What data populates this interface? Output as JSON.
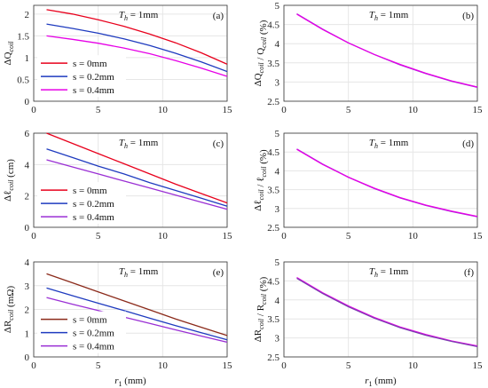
{
  "legend_labels": [
    "s = 0mm",
    "s = 0.2mm",
    "s = 0.4mm"
  ],
  "annotation": "T_h = 1mm",
  "xlabel": "r_1 (mm)",
  "chart_data": [
    {
      "id": "a",
      "type": "line",
      "panel_label": "(a)",
      "ylabel": "ΔQ_coil",
      "xlim": [
        0,
        15
      ],
      "ylim": [
        0,
        2.2
      ],
      "xticks": [
        0,
        5,
        10,
        15
      ],
      "yticks": [
        0,
        0.5,
        1,
        1.5,
        2
      ],
      "x": [
        1,
        3,
        5,
        7,
        9,
        11,
        13,
        15
      ],
      "series": [
        {
          "name": "s = 0mm",
          "color": "#e8001c",
          "values": [
            2.1,
            2.0,
            1.87,
            1.72,
            1.54,
            1.34,
            1.11,
            0.85
          ]
        },
        {
          "name": "s = 0.2mm",
          "color": "#1f3bbf",
          "values": [
            1.77,
            1.67,
            1.56,
            1.43,
            1.28,
            1.1,
            0.9,
            0.68
          ]
        },
        {
          "name": "s = 0.4mm",
          "color": "#e600e6",
          "values": [
            1.5,
            1.42,
            1.33,
            1.22,
            1.09,
            0.93,
            0.76,
            0.57
          ]
        }
      ],
      "legend": true,
      "annotation": true,
      "grid": true
    },
    {
      "id": "b",
      "type": "line",
      "panel_label": "(b)",
      "ylabel": "ΔQ_coil / Q_coil (%)",
      "xlim": [
        0,
        15
      ],
      "ylim": [
        2.5,
        5
      ],
      "xticks": [
        0,
        5,
        10,
        15
      ],
      "yticks": [
        2.5,
        3,
        3.5,
        4,
        4.5,
        5
      ],
      "x": [
        1,
        3,
        5,
        7,
        9,
        11,
        13,
        15
      ],
      "series": [
        {
          "name": "",
          "color": "#9a2fd4",
          "values": [
            4.78,
            4.38,
            4.02,
            3.72,
            3.45,
            3.22,
            3.02,
            2.86
          ]
        },
        {
          "name": "",
          "color": "#e600e6",
          "values": [
            4.77,
            4.37,
            4.02,
            3.72,
            3.46,
            3.23,
            3.03,
            2.87
          ]
        }
      ],
      "legend": false,
      "annotation": true,
      "grid": true
    },
    {
      "id": "c",
      "type": "line",
      "panel_label": "(c)",
      "ylabel": "Δℓ_coil (cm)",
      "xlim": [
        0,
        15
      ],
      "ylim": [
        0,
        6
      ],
      "xticks": [
        0,
        5,
        10,
        15
      ],
      "yticks": [
        0,
        2,
        4,
        6
      ],
      "x": [
        1,
        3,
        5,
        7,
        9,
        11,
        13,
        15
      ],
      "series": [
        {
          "name": "s = 0mm",
          "color": "#e8001c",
          "values": [
            6.0,
            5.35,
            4.7,
            4.05,
            3.4,
            2.75,
            2.15,
            1.55
          ]
        },
        {
          "name": "s = 0.2mm",
          "color": "#1f3bbf",
          "values": [
            5.0,
            4.45,
            3.9,
            3.4,
            2.85,
            2.35,
            1.85,
            1.35
          ]
        },
        {
          "name": "s = 0.4mm",
          "color": "#9a2fd4",
          "values": [
            4.3,
            3.85,
            3.4,
            2.95,
            2.5,
            2.05,
            1.6,
            1.15
          ]
        }
      ],
      "legend": true,
      "annotation": true,
      "grid": true
    },
    {
      "id": "d",
      "type": "line",
      "panel_label": "(d)",
      "ylabel": "Δℓ_coil / ℓ_coil (%)",
      "xlim": [
        0,
        15
      ],
      "ylim": [
        2.5,
        5
      ],
      "xticks": [
        0,
        5,
        10,
        15
      ],
      "yticks": [
        2.5,
        3,
        3.5,
        4,
        4.5,
        5
      ],
      "x": [
        1,
        3,
        5,
        7,
        9,
        11,
        13,
        15
      ],
      "series": [
        {
          "name": "",
          "color": "#9a2fd4",
          "values": [
            4.58,
            4.18,
            3.83,
            3.53,
            3.28,
            3.08,
            2.92,
            2.78
          ]
        },
        {
          "name": "",
          "color": "#e600e6",
          "values": [
            4.57,
            4.17,
            3.83,
            3.54,
            3.29,
            3.09,
            2.93,
            2.79
          ]
        }
      ],
      "legend": false,
      "annotation": true,
      "grid": true
    },
    {
      "id": "e",
      "type": "line",
      "panel_label": "(e)",
      "ylabel": "ΔR_coil (mΩ)",
      "xlim": [
        0,
        15
      ],
      "ylim": [
        0,
        4
      ],
      "xticks": [
        0,
        5,
        10,
        15
      ],
      "yticks": [
        0,
        1,
        2,
        3,
        4
      ],
      "x": [
        1,
        3,
        5,
        7,
        9,
        11,
        13,
        15
      ],
      "series": [
        {
          "name": "s = 0mm",
          "color": "#8b2a1a",
          "values": [
            3.5,
            3.12,
            2.74,
            2.36,
            1.98,
            1.6,
            1.25,
            0.9
          ]
        },
        {
          "name": "s = 0.2mm",
          "color": "#1f3bbf",
          "values": [
            2.9,
            2.58,
            2.26,
            1.95,
            1.63,
            1.32,
            1.02,
            0.72
          ]
        },
        {
          "name": "s = 0.4mm",
          "color": "#9a2fd4",
          "values": [
            2.5,
            2.22,
            1.95,
            1.68,
            1.41,
            1.14,
            0.88,
            0.62
          ]
        }
      ],
      "legend": true,
      "annotation": true,
      "grid": true
    },
    {
      "id": "f",
      "type": "line",
      "panel_label": "(f)",
      "ylabel": "ΔR_coil / R_coil (%)",
      "xlim": [
        0,
        15
      ],
      "ylim": [
        2.5,
        5
      ],
      "xticks": [
        0,
        5,
        10,
        15
      ],
      "yticks": [
        2.5,
        3,
        3.5,
        4,
        4.5,
        5
      ],
      "x": [
        1,
        3,
        5,
        7,
        9,
        11,
        13,
        15
      ],
      "series": [
        {
          "name": "",
          "color": "#e600e6",
          "values": [
            4.59,
            4.19,
            3.84,
            3.54,
            3.29,
            3.09,
            2.92,
            2.79
          ]
        },
        {
          "name": "",
          "color": "#7b3fb0",
          "values": [
            4.57,
            4.17,
            3.82,
            3.52,
            3.27,
            3.07,
            2.91,
            2.77
          ]
        }
      ],
      "legend": false,
      "annotation": true,
      "grid": true
    }
  ]
}
